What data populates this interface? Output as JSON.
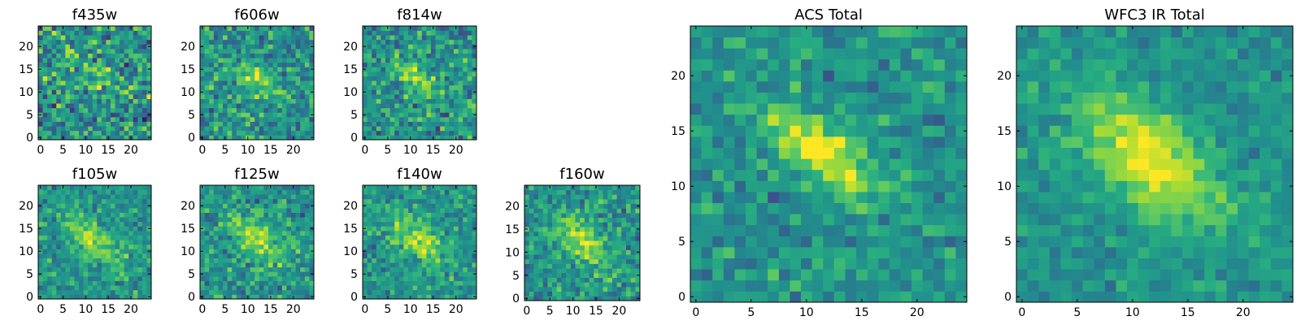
{
  "chart_data": {
    "type": "heatmap",
    "colormap": "viridis",
    "panels": [
      {
        "id": "f435w",
        "title": "f435w",
        "size": "small",
        "seed": 11,
        "noise": 0.55,
        "ang": 0.9,
        "sx": 1.5,
        "sy": 4.0,
        "cx": 11.5,
        "cy": 13.0,
        "amp": 0.25
      },
      {
        "id": "f606w",
        "title": "f606w",
        "size": "small",
        "seed": 23,
        "noise": 0.45,
        "ang": 0.9,
        "sx": 1.6,
        "sy": 4.2,
        "cx": 11.5,
        "cy": 13.0,
        "amp": 0.32
      },
      {
        "id": "f814w",
        "title": "f814w",
        "size": "small",
        "seed": 37,
        "noise": 0.45,
        "ang": 0.9,
        "sx": 1.6,
        "sy": 4.2,
        "cx": 11.5,
        "cy": 13.0,
        "amp": 0.34
      },
      {
        "id": "f105w",
        "title": "f105w",
        "size": "small",
        "seed": 41,
        "noise": 0.35,
        "ang": 0.85,
        "sx": 2.2,
        "sy": 5.0,
        "cx": 11.5,
        "cy": 12.5,
        "amp": 0.36
      },
      {
        "id": "f125w",
        "title": "f125w",
        "size": "small",
        "seed": 53,
        "noise": 0.38,
        "ang": 0.85,
        "sx": 2.4,
        "sy": 5.2,
        "cx": 12.0,
        "cy": 12.5,
        "amp": 0.34
      },
      {
        "id": "f140w",
        "title": "f140w",
        "size": "small",
        "seed": 67,
        "noise": 0.35,
        "ang": 0.85,
        "sx": 2.4,
        "sy": 5.4,
        "cx": 11.5,
        "cy": 12.5,
        "amp": 0.36
      },
      {
        "id": "f160w",
        "title": "f160w",
        "size": "small",
        "seed": 79,
        "noise": 0.38,
        "ang": 0.85,
        "sx": 2.4,
        "sy": 5.4,
        "cx": 12.0,
        "cy": 12.5,
        "amp": 0.36
      },
      {
        "id": "acs",
        "title": "ACS Total",
        "size": "large",
        "seed": 97,
        "noise": 0.3,
        "ang": 0.9,
        "sx": 1.6,
        "sy": 4.0,
        "cx": 11.5,
        "cy": 13.0,
        "amp": 0.5
      },
      {
        "id": "wfc3",
        "title": "WFC3 IR Total",
        "size": "large",
        "seed": 131,
        "noise": 0.22,
        "ang": 0.85,
        "sx": 2.6,
        "sy": 5.0,
        "cx": 11.5,
        "cy": 12.5,
        "amp": 0.5
      }
    ],
    "grid_size": 25,
    "small_ticks": {
      "x": [
        "0",
        "5",
        "10",
        "15",
        "20"
      ],
      "y": [
        "0",
        "5",
        "10",
        "15",
        "20"
      ]
    },
    "large_ticks": {
      "x": [
        "0",
        "5",
        "10",
        "15",
        "20"
      ],
      "y": [
        "0",
        "5",
        "10",
        "15",
        "20"
      ]
    },
    "xlim": [
      0,
      25
    ],
    "ylim": [
      0,
      25
    ],
    "grid": false
  }
}
